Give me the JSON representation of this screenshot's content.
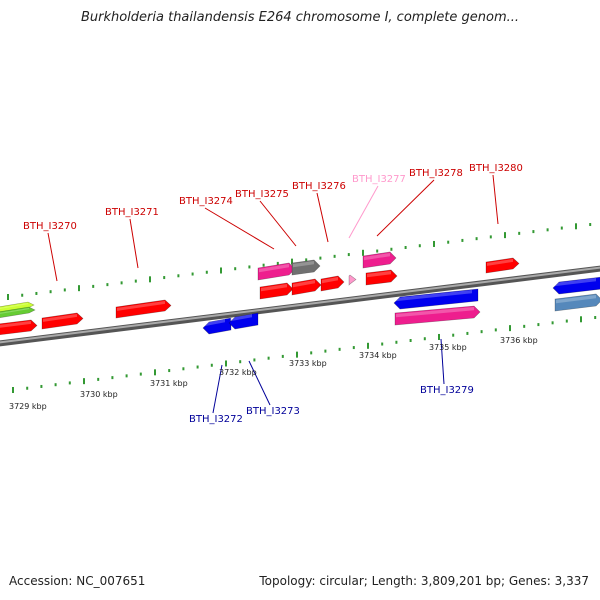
{
  "title": "Burkholderia thailandensis E264 chromosome I, complete genom...",
  "footer": {
    "accession": "Accession: NC_007651",
    "summary": "Topology: circular; Length: 3,809,201 bp; Genes: 3,337"
  },
  "colors": {
    "forward_gene": "#ff0000",
    "reverse_gene": "#0000ee",
    "pink_gene": "#ee1e8e",
    "gray_gene": "#707070",
    "light_pink_gene": "#ff99cc",
    "green_gene": "#66cc33",
    "lime_gene": "#ccff33",
    "steelblue_gene": "#5588bb",
    "forward_label": "#cc0000",
    "reverse_label": "#000099",
    "tick": "#339933",
    "backbone": "#888888"
  },
  "scale_labels": [
    {
      "kbp": "3729 kbp"
    },
    {
      "kbp": "3730 kbp"
    },
    {
      "kbp": "3731 kbp"
    },
    {
      "kbp": "3732 kbp"
    },
    {
      "kbp": "3733 kbp"
    },
    {
      "kbp": "3734 kbp"
    },
    {
      "kbp": "3735 kbp"
    },
    {
      "kbp": "3736 kbp"
    }
  ],
  "gene_labels": [
    {
      "text": "BTH_I3270",
      "strand": "forward"
    },
    {
      "text": "BTH_I3271",
      "strand": "forward"
    },
    {
      "text": "BTH_I3274",
      "strand": "forward"
    },
    {
      "text": "BTH_I3275",
      "strand": "forward"
    },
    {
      "text": "BTH_I3276",
      "strand": "forward"
    },
    {
      "text": "BTH_I3277",
      "strand": "forward"
    },
    {
      "text": "BTH_I3278",
      "strand": "forward"
    },
    {
      "text": "BTH_I3280",
      "strand": "forward"
    },
    {
      "text": "BTH_I3272",
      "strand": "reverse"
    },
    {
      "text": "BTH_I3273",
      "strand": "reverse"
    },
    {
      "text": "BTH_I3279",
      "strand": "reverse"
    }
  ]
}
